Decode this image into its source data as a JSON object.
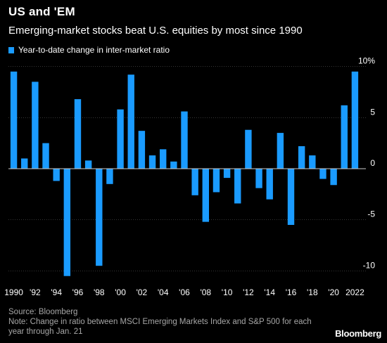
{
  "header": {
    "title": "US and 'EM",
    "subtitle": "Emerging-market stocks beat U.S. equities by most since 1990"
  },
  "footer": {
    "source": "Source: Bloomberg",
    "note": "Note: Change in ratio between MSCI Emerging Markets Index and S&P 500 for each year through Jan. 21"
  },
  "brand": "Bloomberg",
  "colors": {
    "bar": "#1a9bff",
    "background": "#000000",
    "grid": "#555555",
    "zero_line": "#cccccc"
  },
  "chart_data": {
    "type": "bar",
    "title": "US and 'EM",
    "subtitle": "Emerging-market stocks beat U.S. equities by most since 1990",
    "legend": [
      "Year-to-date change in inter-market ratio"
    ],
    "legend_position": "top-left",
    "series": [
      {
        "name": "Year-to-date change in inter-market ratio",
        "values": [
          9.5,
          1.0,
          8.5,
          2.5,
          -1.2,
          -10.5,
          6.8,
          0.8,
          -9.5,
          -1.5,
          5.8,
          9.2,
          3.7,
          1.3,
          1.9,
          0.7,
          5.6,
          -2.6,
          -5.2,
          -2.3,
          -0.9,
          -3.4,
          3.8,
          -1.9,
          -3.0,
          3.5,
          -5.5,
          2.2,
          1.3,
          -1.0,
          -1.6,
          6.2,
          9.5
        ]
      }
    ],
    "categories": [
      "1990",
      "1991",
      "1992",
      "1993",
      "1994",
      "1995",
      "1996",
      "1997",
      "1998",
      "1999",
      "2000",
      "2001",
      "2002",
      "2003",
      "2004",
      "2005",
      "2006",
      "2007",
      "2008",
      "2009",
      "2010",
      "2011",
      "2012",
      "2013",
      "2014",
      "2015",
      "2016",
      "2017",
      "2018",
      "2019",
      "2020",
      "2021",
      "2022"
    ],
    "x_tick_labels": [
      "1990",
      "'92",
      "'94",
      "'96",
      "'98",
      "'00",
      "'02",
      "'04",
      "'06",
      "'08",
      "'10",
      "'12",
      "'14",
      "'16",
      "'18",
      "'20",
      "2022"
    ],
    "y_tick_labels": [
      "10%",
      "5",
      "0",
      "-5",
      "-10"
    ],
    "y_ticks": [
      10,
      5,
      0,
      -5,
      -10
    ],
    "ylim": [
      -11,
      11
    ],
    "xlabel": "",
    "ylabel": "",
    "grid": true,
    "y_axis_position": "right"
  }
}
